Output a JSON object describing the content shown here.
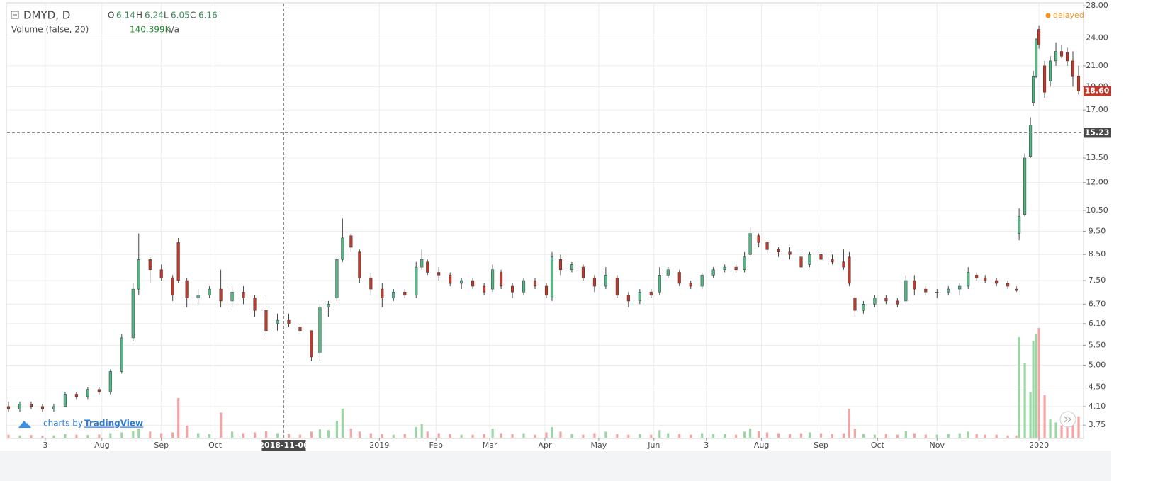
{
  "chart_data": {
    "type": "candlestick",
    "symbol": "DMYD, D",
    "ohlc_header": {
      "o_label": "O",
      "o": 6.14,
      "h_label": "H",
      "h": 6.24,
      "l_label": "L",
      "l": 6.05,
      "c_label": "C",
      "c": 6.16
    },
    "volume_header": {
      "name": "Volume (false, 20)",
      "value": "140.399K",
      "extra": "n/a"
    },
    "status": "delayed",
    "branding": {
      "prefix": "charts by",
      "name": "TradingView"
    },
    "log_scale": true,
    "grid": true,
    "up_color": "#53b987",
    "down_color": "#c0392b",
    "volume_up_color": "#9ad7a4",
    "volume_down_color": "#f5a3a3",
    "x": [
      0,
      4,
      8,
      12,
      16,
      20,
      24,
      28,
      32,
      36,
      40,
      44,
      46,
      50,
      54,
      58,
      60,
      63,
      67,
      71,
      75,
      79,
      83,
      87,
      91,
      95,
      99,
      103,
      107,
      110,
      113,
      116,
      118,
      121,
      124,
      128,
      132,
      136,
      140,
      144,
      146,
      148,
      152,
      156,
      160,
      164,
      168,
      171,
      174,
      178,
      182,
      186,
      190,
      192,
      195,
      199,
      203,
      207,
      211,
      215,
      219,
      223,
      227,
      230,
      233,
      237,
      241,
      245,
      249,
      253,
      257,
      260,
      262,
      265,
      268,
      272,
      276,
      280,
      283,
      287,
      291,
      295,
      297,
      299,
      302,
      306,
      310,
      314,
      317,
      320,
      324,
      328,
      332,
      336,
      339,
      342,
      345,
      349,
      353,
      356,
      357,
      359,
      361,
      362,
      363,
      364,
      366,
      368,
      370,
      372,
      374,
      376,
      378
    ],
    "open": [
      4.1,
      4.05,
      4.15,
      4.1,
      4.05,
      4.1,
      4.35,
      4.3,
      4.45,
      4.4,
      4.85,
      5.7,
      7.2,
      8.3,
      7.9,
      7.6,
      9.0,
      7.5,
      6.9,
      7.0,
      7.2,
      6.8,
      7.1,
      6.9,
      6.5,
      6.1,
      6.2,
      6.0,
      5.9,
      5.3,
      6.6,
      6.9,
      8.3,
      9.3,
      8.6,
      7.6,
      7.2,
      6.9,
      7.1,
      7.0,
      8.0,
      8.2,
      7.8,
      7.7,
      7.4,
      7.5,
      7.3,
      7.2,
      7.8,
      7.3,
      7.1,
      7.5,
      7.3,
      6.9,
      8.3,
      7.9,
      8.0,
      7.6,
      7.3,
      7.6,
      7.0,
      6.8,
      7.1,
      7.1,
      7.7,
      7.8,
      7.4,
      7.3,
      7.7,
      7.9,
      8.0,
      7.9,
      8.5,
      9.3,
      9.0,
      8.7,
      8.6,
      8.4,
      8.1,
      8.5,
      8.3,
      8.2,
      8.4,
      6.9,
      6.5,
      6.7,
      6.9,
      6.8,
      6.8,
      7.5,
      7.2,
      7.1,
      7.1,
      7.2,
      7.3,
      7.7,
      7.6,
      7.5,
      7.4,
      7.2,
      9.4,
      10.3,
      13.6,
      17.6,
      20.0,
      25.0,
      21.0,
      19.5,
      21.5,
      22.5,
      22.4,
      21.5,
      20.0
    ],
    "high": [
      4.2,
      4.2,
      4.2,
      4.15,
      4.15,
      4.4,
      4.4,
      4.5,
      4.5,
      4.9,
      5.8,
      7.4,
      9.4,
      8.4,
      8.1,
      7.7,
      9.2,
      7.6,
      7.2,
      7.3,
      7.9,
      7.3,
      7.3,
      7.0,
      7.0,
      6.4,
      6.4,
      6.1,
      5.9,
      6.7,
      6.8,
      8.4,
      10.1,
      9.4,
      8.7,
      7.8,
      7.4,
      7.2,
      7.2,
      8.2,
      8.7,
      8.3,
      8.0,
      7.8,
      7.6,
      7.6,
      7.4,
      8.1,
      7.9,
      7.4,
      7.6,
      7.6,
      7.4,
      8.6,
      8.5,
      8.2,
      8.1,
      7.7,
      8.0,
      7.7,
      7.1,
      7.2,
      7.2,
      8.0,
      8.0,
      7.9,
      7.5,
      7.8,
      8.0,
      8.1,
      8.1,
      8.6,
      9.7,
      9.4,
      9.1,
      8.8,
      8.8,
      8.5,
      8.6,
      8.9,
      8.5,
      8.7,
      8.6,
      7.0,
      6.8,
      7.0,
      7.0,
      6.9,
      7.7,
      7.7,
      7.3,
      7.2,
      7.3,
      7.4,
      8.0,
      7.8,
      7.7,
      7.6,
      7.5,
      7.3,
      10.6,
      13.8,
      16.4,
      20.5,
      24.0,
      25.5,
      21.5,
      22.0,
      23.5,
      23.2,
      22.9,
      22.5,
      21.0
    ],
    "low": [
      4.0,
      4.0,
      4.05,
      4.0,
      4.0,
      4.1,
      4.25,
      4.25,
      4.35,
      4.35,
      4.8,
      5.6,
      7.0,
      7.4,
      7.5,
      6.8,
      7.4,
      6.6,
      6.7,
      6.9,
      6.6,
      6.6,
      6.7,
      6.3,
      5.7,
      5.9,
      6.0,
      5.8,
      5.1,
      5.1,
      6.3,
      6.8,
      8.2,
      8.6,
      7.4,
      7.0,
      6.6,
      6.8,
      6.9,
      6.9,
      7.9,
      7.7,
      7.5,
      7.3,
      7.2,
      7.2,
      7.0,
      7.1,
      7.2,
      6.9,
      7.0,
      7.2,
      6.9,
      6.8,
      7.7,
      7.8,
      7.5,
      7.1,
      7.2,
      6.9,
      6.6,
      6.7,
      6.9,
      7.0,
      7.6,
      7.3,
      7.2,
      7.2,
      7.6,
      7.8,
      7.8,
      7.8,
      8.4,
      8.8,
      8.5,
      8.4,
      8.3,
      7.9,
      8.0,
      8.2,
      8.1,
      7.9,
      7.3,
      6.3,
      6.4,
      6.6,
      6.7,
      6.6,
      6.8,
      7.0,
      7.0,
      6.9,
      7.0,
      7.0,
      7.2,
      7.5,
      7.4,
      7.3,
      7.2,
      7.1,
      9.1,
      10.2,
      13.5,
      17.3,
      19.8,
      22.8,
      18.0,
      19.0,
      21.0,
      21.8,
      21.0,
      19.0,
      18.3
    ],
    "close": [
      4.05,
      4.15,
      4.1,
      4.05,
      4.1,
      4.35,
      4.3,
      4.45,
      4.4,
      4.85,
      5.7,
      7.2,
      8.3,
      7.9,
      7.6,
      7.0,
      7.5,
      6.9,
      7.0,
      7.2,
      6.8,
      7.1,
      6.9,
      6.5,
      5.9,
      6.2,
      6.1,
      5.9,
      5.2,
      6.6,
      6.7,
      8.3,
      9.2,
      8.8,
      7.6,
      7.2,
      6.9,
      7.1,
      7.0,
      8.0,
      8.3,
      7.8,
      7.7,
      7.4,
      7.5,
      7.3,
      7.1,
      7.9,
      7.3,
      7.1,
      7.5,
      7.3,
      7.0,
      8.4,
      7.9,
      8.1,
      7.6,
      7.3,
      7.7,
      7.0,
      6.8,
      7.1,
      7.0,
      7.7,
      7.9,
      7.4,
      7.3,
      7.7,
      7.9,
      8.0,
      7.9,
      8.4,
      9.4,
      9.0,
      8.7,
      8.6,
      8.5,
      8.0,
      8.5,
      8.3,
      8.2,
      8.0,
      7.4,
      6.5,
      6.7,
      6.9,
      6.8,
      6.7,
      7.5,
      7.2,
      7.1,
      7.1,
      7.2,
      7.3,
      7.8,
      7.6,
      7.5,
      7.4,
      7.3,
      7.15,
      10.2,
      13.5,
      15.8,
      20.0,
      23.8,
      23.2,
      18.5,
      21.5,
      22.5,
      22.0,
      21.5,
      20.0,
      18.6
    ],
    "volume": [
      20,
      15,
      18,
      12,
      15,
      25,
      20,
      18,
      22,
      30,
      35,
      45,
      60,
      40,
      30,
      35,
      260,
      80,
      30,
      25,
      165,
      40,
      30,
      35,
      45,
      30,
      25,
      20,
      40,
      55,
      50,
      110,
      190,
      60,
      40,
      30,
      25,
      20,
      25,
      70,
      90,
      40,
      30,
      25,
      20,
      20,
      25,
      60,
      30,
      25,
      30,
      20,
      35,
      70,
      40,
      25,
      20,
      30,
      40,
      25,
      20,
      25,
      20,
      50,
      30,
      25,
      20,
      30,
      25,
      25,
      20,
      40,
      60,
      45,
      35,
      30,
      25,
      30,
      35,
      30,
      25,
      30,
      190,
      60,
      25,
      20,
      25,
      20,
      45,
      30,
      20,
      20,
      25,
      30,
      40,
      25,
      20,
      20,
      15,
      15,
      660,
      490,
      300,
      635,
      680,
      720,
      280,
      120,
      100,
      80,
      140,
      90,
      140.399
    ],
    "xlim": [
      -0.5,
      379.5
    ],
    "ylim": [
      3.53,
      28.3
    ],
    "xticks": [
      {
        "value": 13,
        "label": "3"
      },
      {
        "value": 33,
        "label": "Aug"
      },
      {
        "value": 54,
        "label": "Sep"
      },
      {
        "value": 73,
        "label": "Oct"
      },
      {
        "value": 131,
        "label": "2019"
      },
      {
        "value": 151,
        "label": "Feb"
      },
      {
        "value": 170,
        "label": "Mar"
      },
      {
        "value": 189.5,
        "label": "Apr"
      },
      {
        "value": 208.5,
        "label": "May"
      },
      {
        "value": 228,
        "label": "Jun"
      },
      {
        "value": 246.5,
        "label": "3"
      },
      {
        "value": 266,
        "label": "Aug"
      },
      {
        "value": 287,
        "label": "Sep"
      },
      {
        "value": 307,
        "label": "Oct"
      },
      {
        "value": 328,
        "label": "Nov"
      },
      {
        "value": 364,
        "label": "2020"
      }
    ],
    "yticks": [
      {
        "value": 3.75,
        "label": "3.75"
      },
      {
        "value": 4.1,
        "label": "4.10"
      },
      {
        "value": 4.5,
        "label": "4.50"
      },
      {
        "value": 5,
        "label": "5.00"
      },
      {
        "value": 5.5,
        "label": "5.50"
      },
      {
        "value": 6.1,
        "label": "6.10"
      },
      {
        "value": 6.7,
        "label": "6.70"
      },
      {
        "value": 7.5,
        "label": "7.50"
      },
      {
        "value": 8.5,
        "label": "8.50"
      },
      {
        "value": 9.5,
        "label": "9.50"
      },
      {
        "value": 10.5,
        "label": "10.50"
      },
      {
        "value": 12,
        "label": "12.00"
      },
      {
        "value": 13.5,
        "label": "13.50"
      },
      {
        "value": 17,
        "label": "17.00"
      },
      {
        "value": 19,
        "label": "19.00"
      },
      {
        "value": 21,
        "label": "21.00"
      },
      {
        "value": 24,
        "label": "24.00"
      },
      {
        "value": 28,
        "label": "28.00"
      }
    ],
    "last_price": {
      "value": 18.6,
      "label": "18.60"
    },
    "crosshair": {
      "x": {
        "value": 97.25,
        "label": "2018-11-06"
      },
      "y": 15.23
    }
  }
}
